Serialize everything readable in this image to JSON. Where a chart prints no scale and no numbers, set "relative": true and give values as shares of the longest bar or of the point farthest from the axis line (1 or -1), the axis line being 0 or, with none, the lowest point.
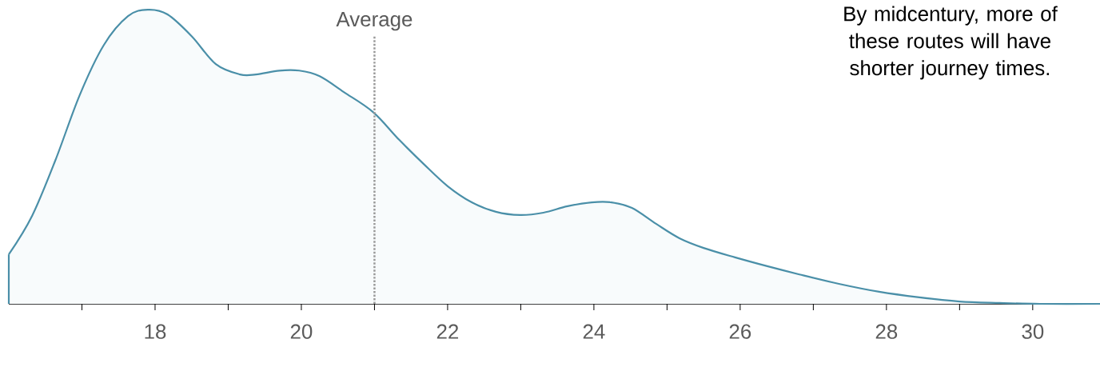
{
  "chart_data": {
    "type": "area",
    "relative": true,
    "color": "#4a8fa8",
    "x": [
      16.0,
      16.32,
      16.64,
      16.97,
      17.3,
      17.63,
      17.9,
      18.17,
      18.5,
      18.83,
      19.16,
      19.38,
      19.7,
      19.97,
      20.25,
      20.58,
      20.98,
      21.34,
      21.67,
      22.0,
      22.33,
      22.66,
      22.99,
      23.31,
      23.64,
      23.97,
      24.24,
      24.52,
      24.85,
      25.17,
      25.5,
      25.93,
      26.37,
      26.81,
      27.35,
      27.9,
      28.45,
      29.0,
      29.55,
      30.1,
      30.92
    ],
    "values": [
      0.168,
      0.3,
      0.49,
      0.71,
      0.88,
      0.978,
      1.0,
      0.984,
      0.91,
      0.815,
      0.78,
      0.78,
      0.793,
      0.793,
      0.774,
      0.72,
      0.652,
      0.557,
      0.476,
      0.4,
      0.345,
      0.313,
      0.302,
      0.31,
      0.332,
      0.345,
      0.345,
      0.326,
      0.272,
      0.223,
      0.19,
      0.158,
      0.128,
      0.1,
      0.068,
      0.041,
      0.022,
      0.008,
      0.003,
      0,
      0
    ],
    "xlim": [
      16,
      30.92
    ],
    "xticks": [
      {
        "value": 17,
        "label": null
      },
      18,
      {
        "value": 19,
        "label": null
      },
      20,
      {
        "value": 21,
        "label": null
      },
      22,
      {
        "value": 23,
        "label": null
      },
      24,
      {
        "value": 25,
        "label": null
      },
      26,
      {
        "value": 27,
        "label": null
      },
      28,
      {
        "value": 29,
        "label": null
      },
      30
    ],
    "ref_lines": [
      {
        "axis": "x",
        "value": 21,
        "label": "Average",
        "color": "#999999",
        "line_style": "dotted"
      }
    ],
    "annotations": [
      "By midcentury, more of these routes will have shorter journey times."
    ],
    "grid": false,
    "marker": "none"
  }
}
